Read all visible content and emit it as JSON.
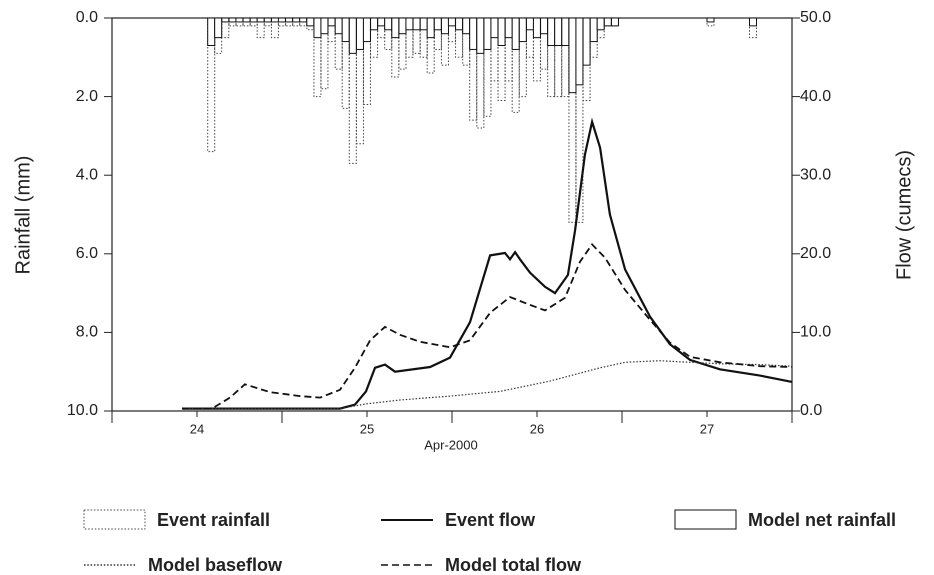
{
  "chart_data": {
    "type": "hydrograph",
    "xlabel": "Apr-2000",
    "ylabel": "Rainfall (mm)",
    "y2label": "Flow (cumecs)",
    "xlim": [
      23.5,
      27.5
    ],
    "xticks": [
      24,
      25,
      26,
      27
    ],
    "xminorticks": [
      23.5,
      24.5,
      25.5,
      26.5,
      27.5
    ],
    "ylim": [
      10,
      0
    ],
    "yticks": [
      {
        "value": 0,
        "label": "0.0"
      },
      {
        "value": 2,
        "label": "2.0"
      },
      {
        "value": 4,
        "label": "4.0"
      },
      {
        "value": 6,
        "label": "6.0"
      },
      {
        "value": 8,
        "label": "8.0"
      },
      {
        "value": 10,
        "label": "10.0"
      }
    ],
    "y2lim": [
      0,
      50
    ],
    "y2ticks": [
      {
        "value": 0,
        "label": "0.0"
      },
      {
        "value": 10,
        "label": "10.0"
      },
      {
        "value": 20,
        "label": "20.0"
      },
      {
        "value": 30,
        "label": "30.0"
      },
      {
        "value": 40,
        "label": "40.0"
      },
      {
        "value": 50,
        "label": "50.0"
      }
    ],
    "series": [
      {
        "name": "Event rainfall",
        "mark": "bar",
        "dash": "dotted",
        "color": "#444",
        "axis": "y",
        "x": [
          24.063,
          24.104,
          24.146,
          24.188,
          24.229,
          24.271,
          24.313,
          24.354,
          24.396,
          24.438,
          24.479,
          24.521,
          24.563,
          24.604,
          24.646,
          24.688,
          24.729,
          24.771,
          24.813,
          24.854,
          24.896,
          24.938,
          24.979,
          25.021,
          25.063,
          25.104,
          25.146,
          25.188,
          25.229,
          25.271,
          25.313,
          25.354,
          25.396,
          25.438,
          25.479,
          25.521,
          25.563,
          25.604,
          25.646,
          25.688,
          25.729,
          25.771,
          25.813,
          25.854,
          25.896,
          25.938,
          25.979,
          26.021,
          26.063,
          26.104,
          26.146,
          26.188,
          26.229,
          26.271,
          26.313,
          26.354,
          26.396,
          26.438,
          27.0,
          27.25
        ],
        "values": [
          3.4,
          0.9,
          0.5,
          0.2,
          0.2,
          0.2,
          0.2,
          0.5,
          0.2,
          0.5,
          0.2,
          0.2,
          0.2,
          0.2,
          0.3,
          2.0,
          1.8,
          0.6,
          1.3,
          2.3,
          3.7,
          3.2,
          2.2,
          1.0,
          0.5,
          0.8,
          1.5,
          1.3,
          1.0,
          0.9,
          1.0,
          1.4,
          0.8,
          1.2,
          0.6,
          1.0,
          1.2,
          2.6,
          2.8,
          2.5,
          1.6,
          2.1,
          1.6,
          2.4,
          2.0,
          1.0,
          1.6,
          1.3,
          2.0,
          2.0,
          2.0,
          5.2,
          5.2,
          2.1,
          1.0,
          0.5,
          0.2,
          0.2,
          0.2,
          0.5
        ]
      },
      {
        "name": "Event flow",
        "mark": "line",
        "dash": "solid",
        "color": "#111",
        "axis": "y2",
        "x": [
          23.912,
          24.841,
          24.929,
          24.994,
          25.047,
          25.106,
          25.165,
          25.371,
          25.488,
          25.606,
          25.724,
          25.812,
          25.841,
          25.871,
          25.9,
          25.959,
          26.047,
          26.106,
          26.182,
          26.224,
          26.282,
          26.324,
          26.371,
          26.429,
          26.518,
          26.665,
          26.782,
          26.9,
          27.076,
          27.312,
          27.5
        ],
        "values": [
          0.3,
          0.3,
          0.8,
          2.5,
          5.5,
          5.9,
          5.0,
          5.6,
          6.8,
          11.3,
          19.8,
          20.1,
          19.3,
          20.2,
          19.3,
          17.6,
          15.8,
          15.0,
          17.3,
          23.0,
          32.6,
          36.8,
          33.5,
          25.0,
          18.0,
          12.0,
          8.5,
          6.5,
          5.3,
          4.5,
          3.7
        ]
      },
      {
        "name": "Model net rainfall",
        "mark": "bar",
        "dash": "solid",
        "color": "#111",
        "axis": "y",
        "x": [
          24.063,
          24.104,
          24.146,
          24.188,
          24.229,
          24.271,
          24.313,
          24.354,
          24.396,
          24.438,
          24.479,
          24.521,
          24.563,
          24.604,
          24.646,
          24.688,
          24.729,
          24.771,
          24.813,
          24.854,
          24.896,
          24.938,
          24.979,
          25.021,
          25.063,
          25.104,
          25.146,
          25.188,
          25.229,
          25.271,
          25.313,
          25.354,
          25.396,
          25.438,
          25.479,
          25.521,
          25.563,
          25.604,
          25.646,
          25.688,
          25.729,
          25.771,
          25.813,
          25.854,
          25.896,
          25.938,
          25.979,
          26.021,
          26.063,
          26.104,
          26.146,
          26.188,
          26.229,
          26.271,
          26.313,
          26.354,
          26.396,
          26.438,
          27.0,
          27.25
        ],
        "values": [
          0.7,
          0.5,
          0.1,
          0.1,
          0.1,
          0.1,
          0.1,
          0.1,
          0.1,
          0.1,
          0.1,
          0.1,
          0.1,
          0.1,
          0.2,
          0.5,
          0.4,
          0.2,
          0.4,
          0.6,
          0.9,
          0.8,
          0.6,
          0.3,
          0.2,
          0.3,
          0.5,
          0.4,
          0.3,
          0.3,
          0.3,
          0.5,
          0.3,
          0.4,
          0.2,
          0.3,
          0.4,
          0.8,
          0.9,
          0.8,
          0.5,
          0.7,
          0.5,
          0.8,
          0.6,
          0.3,
          0.5,
          0.4,
          0.7,
          0.7,
          0.7,
          1.9,
          1.7,
          1.2,
          0.6,
          0.3,
          0.2,
          0.2,
          0.1,
          0.2
        ]
      },
      {
        "name": "Model baseflow",
        "mark": "line",
        "dash": "dotted",
        "color": "#333",
        "axis": "y2",
        "x": [
          23.912,
          24.841,
          24.994,
          25.194,
          25.488,
          25.782,
          26.076,
          26.371,
          26.518,
          26.724,
          26.9,
          27.076,
          27.312,
          27.5
        ],
        "values": [
          0.3,
          0.3,
          0.9,
          1.4,
          1.9,
          2.5,
          3.8,
          5.5,
          6.2,
          6.4,
          6.2,
          6.0,
          5.9,
          5.7
        ]
      },
      {
        "name": "Model total flow",
        "mark": "line",
        "dash": "dashed",
        "color": "#111",
        "axis": "y2",
        "x": [
          23.912,
          24.088,
          24.194,
          24.282,
          24.429,
          24.606,
          24.724,
          24.841,
          24.929,
          25.018,
          25.106,
          25.194,
          25.312,
          25.488,
          25.606,
          25.724,
          25.841,
          25.959,
          26.047,
          26.165,
          26.253,
          26.324,
          26.4,
          26.518,
          26.665,
          26.782,
          26.9,
          27.076,
          27.312,
          27.5
        ],
        "values": [
          0.3,
          0.3,
          1.7,
          3.4,
          2.4,
          1.9,
          1.7,
          2.7,
          5.5,
          9.0,
          10.7,
          9.7,
          8.8,
          8.1,
          9.0,
          12.5,
          14.5,
          13.5,
          12.8,
          14.4,
          19.0,
          21.2,
          19.5,
          15.4,
          11.6,
          8.7,
          6.9,
          6.2,
          5.7,
          5.6
        ]
      }
    ]
  }
}
